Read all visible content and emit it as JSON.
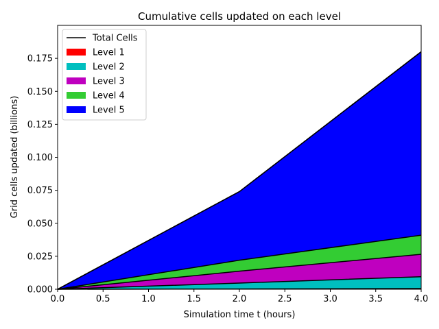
{
  "chart_data": {
    "type": "area",
    "title": "Cumulative cells updated on each level",
    "xlabel": "Simulation time t (hours)",
    "ylabel": "Grid cells updated (billions)",
    "xlim": [
      0.0,
      4.0
    ],
    "ylim": [
      0.0,
      0.2
    ],
    "stacked": true,
    "legend_position": "top-left",
    "grid": false,
    "x": [
      0.0,
      2.0,
      4.0
    ],
    "x_ticks": [
      "0.0",
      "0.5",
      "1.0",
      "1.5",
      "2.0",
      "2.5",
      "3.0",
      "3.5",
      "4.0"
    ],
    "y_ticks": [
      "0.000",
      "0.025",
      "0.050",
      "0.075",
      "0.100",
      "0.125",
      "0.150",
      "0.175"
    ],
    "total_line": {
      "name": "Total Cells",
      "color": "#000000",
      "values": [
        0.0,
        0.074,
        0.18
      ]
    },
    "series": [
      {
        "name": "Level 1",
        "color": "#ff0000",
        "values": [
          0.0,
          0.0002,
          0.0005
        ]
      },
      {
        "name": "Level 2",
        "color": "#00bfbf",
        "values": [
          0.0,
          0.0045,
          0.009
        ]
      },
      {
        "name": "Level 3",
        "color": "#bf00bf",
        "values": [
          0.0,
          0.009,
          0.017
        ]
      },
      {
        "name": "Level 4",
        "color": "#33cc33",
        "values": [
          0.0,
          0.0083,
          0.0145
        ]
      },
      {
        "name": "Level 5",
        "color": "#0000ff",
        "values": [
          0.0,
          0.052,
          0.139
        ]
      }
    ]
  }
}
